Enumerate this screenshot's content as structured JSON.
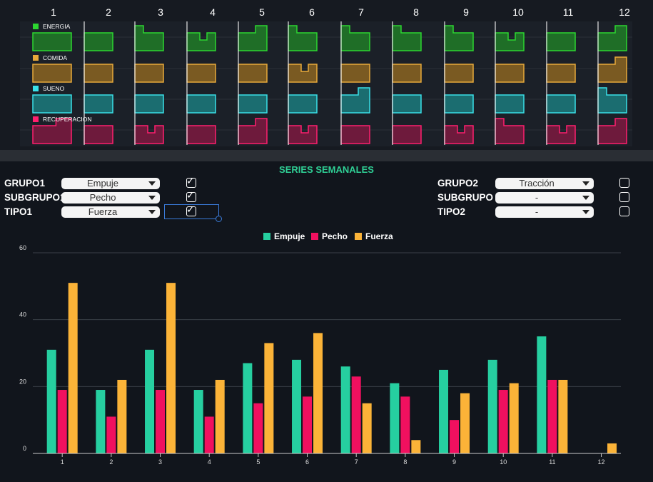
{
  "top": {
    "columns": [
      "1",
      "2",
      "3",
      "4",
      "5",
      "6",
      "7",
      "8",
      "9",
      "10",
      "11",
      "12"
    ],
    "rows": [
      {
        "label": "ENERGIA",
        "color": "#2cd630",
        "fill": "#1f6e27"
      },
      {
        "label": "COMIDA",
        "color": "#e8a93a",
        "fill": "#7a5a22"
      },
      {
        "label": "SUENO",
        "color": "#3ae0e8",
        "fill": "#1b6d70"
      },
      {
        "label": "RECUPERACION",
        "color": "#ff1f6e",
        "fill": "#6e1a3c"
      }
    ]
  },
  "controls": {
    "title": "SERIES SEMANALES",
    "left": [
      {
        "label": "GRUPO1",
        "value": "Empuje",
        "checked": true
      },
      {
        "label": "SUBGRUPO1",
        "value": "Pecho",
        "checked": true
      },
      {
        "label": "TIPO1",
        "value": "Fuerza",
        "checked": true
      }
    ],
    "right": [
      {
        "label": "GRUPO2",
        "value": "Tracción",
        "checked": false
      },
      {
        "label": "SUBGRUPO2",
        "value": "-",
        "checked": false
      },
      {
        "label": "TIPO2",
        "value": "-",
        "checked": false
      }
    ],
    "checkmark": "✓"
  },
  "chart_data": {
    "type": "bar",
    "categories": [
      "1",
      "2",
      "3",
      "4",
      "5",
      "6",
      "7",
      "8",
      "9",
      "10",
      "11",
      "12"
    ],
    "series": [
      {
        "name": "Empuje",
        "color": "#26cfa0",
        "values": [
          31,
          19,
          31,
          19,
          27,
          28,
          26,
          21,
          25,
          28,
          35,
          0
        ]
      },
      {
        "name": "Pecho",
        "color": "#f0105f",
        "values": [
          19,
          11,
          19,
          11,
          15,
          17,
          23,
          17,
          10,
          19,
          22,
          0
        ]
      },
      {
        "name": "Fuerza",
        "color": "#fbb338",
        "values": [
          51,
          22,
          51,
          22,
          33,
          36,
          15,
          4,
          18,
          21,
          22,
          3
        ]
      }
    ],
    "yticks": [
      0,
      20,
      40,
      60
    ],
    "ylim": [
      0,
      60
    ],
    "grid": true,
    "legend": "top"
  }
}
